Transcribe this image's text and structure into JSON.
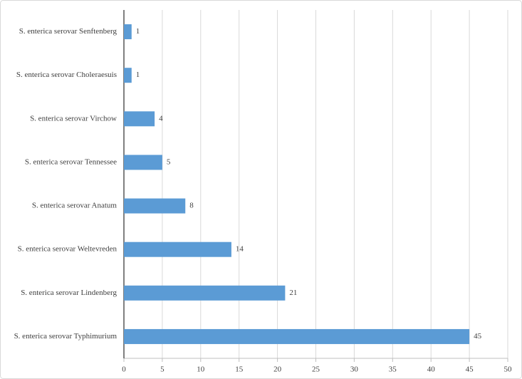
{
  "chart_data": {
    "type": "bar",
    "orientation": "horizontal",
    "categories": [
      "S. enterica serovar Senftenberg",
      "S. enterica serovar Choleraesuis",
      "S. enterica serovar Virchow",
      "S. enterica serovar Tennessee",
      "S. enterica serovar Anatum",
      "S. enterica serovar Weltevreden",
      "S. enterica serovar Lindenberg",
      "S. enterica serovar Typhimurium"
    ],
    "values": [
      1,
      1,
      4,
      5,
      8,
      14,
      21,
      45
    ],
    "color": "#5b9bd5",
    "xlim": [
      0,
      50
    ],
    "xticks": [
      0,
      5,
      10,
      15,
      20,
      25,
      30,
      35,
      40,
      45,
      50
    ],
    "grid": true
  }
}
